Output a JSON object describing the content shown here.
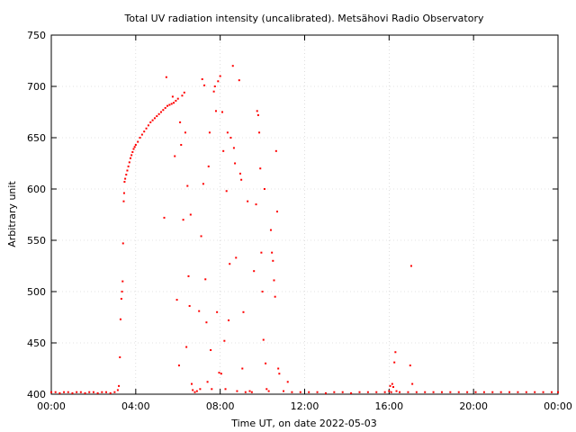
{
  "chart_data": {
    "type": "scatter",
    "title": "Total UV radiation intensity (uncalibrated). Metsähovi Radio Observatory",
    "xlabel": "Time UT, on date 2022-05-03",
    "ylabel": "Arbitrary unit",
    "xlim": [
      0,
      24
    ],
    "ylim": [
      400,
      750
    ],
    "x_ticks": [
      0,
      4,
      8,
      12,
      16,
      20,
      24
    ],
    "x_tick_labels": [
      "00:00",
      "04:00",
      "08:00",
      "12:00",
      "16:00",
      "20:00",
      "00:00"
    ],
    "y_ticks": [
      400,
      450,
      500,
      550,
      600,
      650,
      700,
      750
    ],
    "y_tick_labels": [
      "400",
      "450",
      "500",
      "550",
      "600",
      "650",
      "700",
      "750"
    ],
    "grid": true,
    "marker_color": "#ff0000",
    "series": [
      {
        "points": [
          [
            0.0,
            402
          ],
          [
            0.2,
            402
          ],
          [
            0.4,
            401
          ],
          [
            0.6,
            402
          ],
          [
            0.8,
            402
          ],
          [
            1.0,
            401
          ],
          [
            1.2,
            402
          ],
          [
            1.4,
            402
          ],
          [
            1.6,
            401
          ],
          [
            1.8,
            402
          ],
          [
            2.0,
            402
          ],
          [
            2.2,
            401
          ],
          [
            2.4,
            402
          ],
          [
            2.6,
            402
          ],
          [
            2.8,
            401
          ],
          [
            3.0,
            402
          ],
          [
            3.15,
            404
          ],
          [
            3.2,
            408
          ],
          [
            3.25,
            436
          ],
          [
            3.28,
            473
          ],
          [
            3.32,
            493
          ],
          [
            3.35,
            500
          ],
          [
            3.38,
            510
          ],
          [
            3.4,
            547
          ],
          [
            3.43,
            588
          ],
          [
            3.45,
            596
          ],
          [
            3.47,
            607
          ],
          [
            3.5,
            610
          ],
          [
            3.55,
            614
          ],
          [
            3.6,
            618
          ],
          [
            3.65,
            622
          ],
          [
            3.7,
            626
          ],
          [
            3.75,
            630
          ],
          [
            3.8,
            633
          ],
          [
            3.85,
            636
          ],
          [
            3.9,
            639
          ],
          [
            3.95,
            641
          ],
          [
            4.0,
            643
          ],
          [
            4.1,
            646
          ],
          [
            4.2,
            650
          ],
          [
            4.3,
            653
          ],
          [
            4.4,
            656
          ],
          [
            4.5,
            659
          ],
          [
            4.6,
            662
          ],
          [
            4.7,
            665
          ],
          [
            4.8,
            667
          ],
          [
            4.9,
            669
          ],
          [
            5.0,
            671
          ],
          [
            5.1,
            673
          ],
          [
            5.2,
            675
          ],
          [
            5.3,
            677
          ],
          [
            5.35,
            572
          ],
          [
            5.4,
            679
          ],
          [
            5.45,
            709
          ],
          [
            5.5,
            681
          ],
          [
            5.6,
            682
          ],
          [
            5.7,
            683
          ],
          [
            5.75,
            690
          ],
          [
            5.8,
            684
          ],
          [
            5.85,
            632
          ],
          [
            5.9,
            686
          ],
          [
            5.95,
            492
          ],
          [
            6.0,
            688
          ],
          [
            6.05,
            428
          ],
          [
            6.1,
            665
          ],
          [
            6.15,
            643
          ],
          [
            6.2,
            691
          ],
          [
            6.25,
            570
          ],
          [
            6.3,
            694
          ],
          [
            6.35,
            655
          ],
          [
            6.4,
            446
          ],
          [
            6.45,
            603
          ],
          [
            6.5,
            515
          ],
          [
            6.55,
            486
          ],
          [
            6.6,
            575
          ],
          [
            6.65,
            410
          ],
          [
            6.7,
            404
          ],
          [
            6.8,
            402
          ],
          [
            6.9,
            403
          ],
          [
            7.0,
            481
          ],
          [
            7.05,
            405
          ],
          [
            7.1,
            554
          ],
          [
            7.15,
            707
          ],
          [
            7.2,
            605
          ],
          [
            7.25,
            701
          ],
          [
            7.3,
            512
          ],
          [
            7.35,
            470
          ],
          [
            7.4,
            412
          ],
          [
            7.45,
            622
          ],
          [
            7.5,
            655
          ],
          [
            7.55,
            443
          ],
          [
            7.6,
            405
          ],
          [
            7.7,
            695
          ],
          [
            7.75,
            700
          ],
          [
            7.8,
            676
          ],
          [
            7.85,
            480
          ],
          [
            7.9,
            705
          ],
          [
            7.95,
            421
          ],
          [
            8.0,
            710
          ],
          [
            8.05,
            420
          ],
          [
            8.1,
            675
          ],
          [
            8.15,
            637
          ],
          [
            8.2,
            452
          ],
          [
            8.25,
            405
          ],
          [
            8.3,
            598
          ],
          [
            8.35,
            655
          ],
          [
            8.4,
            472
          ],
          [
            8.45,
            527
          ],
          [
            8.5,
            650
          ],
          [
            8.6,
            720
          ],
          [
            8.65,
            640
          ],
          [
            8.7,
            625
          ],
          [
            8.75,
            533
          ],
          [
            8.8,
            403
          ],
          [
            8.9,
            706
          ],
          [
            8.95,
            615
          ],
          [
            9.0,
            609
          ],
          [
            9.05,
            425
          ],
          [
            9.1,
            480
          ],
          [
            9.2,
            402
          ],
          [
            9.3,
            588
          ],
          [
            9.4,
            403
          ],
          [
            9.5,
            402
          ],
          [
            9.6,
            520
          ],
          [
            9.7,
            585
          ],
          [
            9.75,
            676
          ],
          [
            9.8,
            672
          ],
          [
            9.85,
            655
          ],
          [
            9.9,
            620
          ],
          [
            9.95,
            538
          ],
          [
            10.0,
            500
          ],
          [
            10.05,
            453
          ],
          [
            10.1,
            600
          ],
          [
            10.15,
            430
          ],
          [
            10.2,
            405
          ],
          [
            10.3,
            403
          ],
          [
            10.4,
            560
          ],
          [
            10.45,
            538
          ],
          [
            10.5,
            530
          ],
          [
            10.55,
            511
          ],
          [
            10.6,
            495
          ],
          [
            10.65,
            637
          ],
          [
            10.7,
            578
          ],
          [
            10.75,
            425
          ],
          [
            10.8,
            420
          ],
          [
            11.0,
            403
          ],
          [
            11.2,
            412
          ],
          [
            11.4,
            402
          ],
          [
            11.8,
            402
          ],
          [
            12.2,
            402
          ],
          [
            12.6,
            402
          ],
          [
            13.0,
            401
          ],
          [
            13.4,
            402
          ],
          [
            13.8,
            402
          ],
          [
            14.2,
            401
          ],
          [
            14.6,
            402
          ],
          [
            15.0,
            402
          ],
          [
            15.4,
            402
          ],
          [
            15.8,
            402
          ],
          [
            16.0,
            403
          ],
          [
            16.05,
            408
          ],
          [
            16.1,
            402
          ],
          [
            16.15,
            410
          ],
          [
            16.2,
            407
          ],
          [
            16.25,
            431
          ],
          [
            16.3,
            441
          ],
          [
            16.35,
            403
          ],
          [
            16.5,
            402
          ],
          [
            16.9,
            402
          ],
          [
            17.0,
            428
          ],
          [
            17.05,
            525
          ],
          [
            17.1,
            410
          ],
          [
            17.3,
            402
          ],
          [
            17.7,
            402
          ],
          [
            18.1,
            402
          ],
          [
            18.5,
            402
          ],
          [
            18.9,
            402
          ],
          [
            19.3,
            402
          ],
          [
            19.7,
            402
          ],
          [
            20.1,
            402
          ],
          [
            20.5,
            402
          ],
          [
            20.9,
            402
          ],
          [
            21.3,
            402
          ],
          [
            21.7,
            402
          ],
          [
            22.1,
            402
          ],
          [
            22.5,
            402
          ],
          [
            22.9,
            402
          ],
          [
            23.3,
            402
          ],
          [
            23.7,
            402
          ],
          [
            24.0,
            402
          ]
        ]
      }
    ]
  }
}
